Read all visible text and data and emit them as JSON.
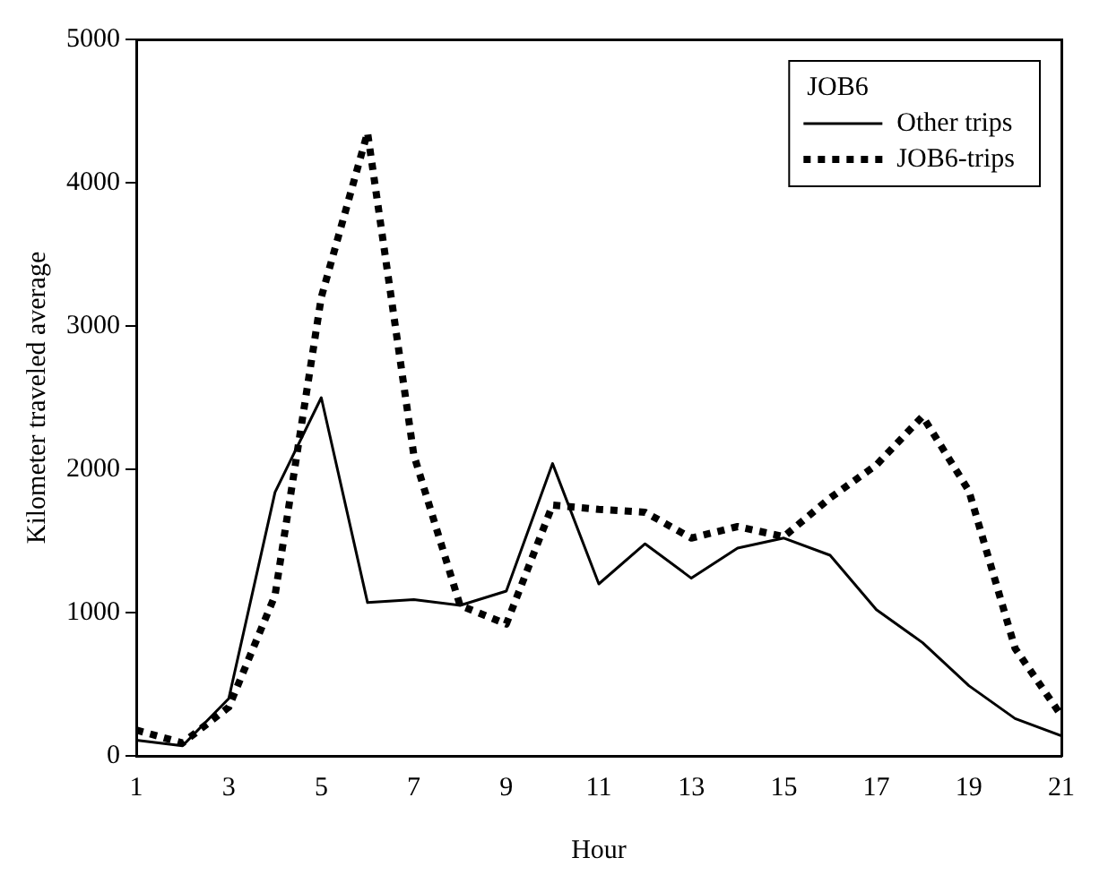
{
  "chart_data": {
    "type": "line",
    "xlabel": "Hour",
    "ylabel": "Kilometer traveled average",
    "legend_title": "JOB6",
    "legend": "top right",
    "grid": false,
    "marker": "none",
    "x": [
      1,
      2,
      3,
      4,
      5,
      6,
      7,
      8,
      9,
      10,
      11,
      12,
      13,
      14,
      15,
      16,
      17,
      18,
      19,
      20,
      21
    ],
    "xlim": [
      1,
      21
    ],
    "xticks": [
      1,
      3,
      5,
      7,
      9,
      11,
      13,
      15,
      17,
      19,
      21
    ],
    "ylim": [
      0,
      5000
    ],
    "yticks": [
      0,
      1000,
      2000,
      3000,
      4000,
      5000
    ],
    "series": [
      {
        "name": "Other trips",
        "color": "#000000",
        "line_style": "solid",
        "values": [
          110,
          70,
          400,
          1840,
          2500,
          1070,
          1090,
          1050,
          1150,
          2040,
          1200,
          1480,
          1240,
          1450,
          1520,
          1400,
          1020,
          790,
          490,
          260,
          140
        ]
      },
      {
        "name": "JOB6-trips",
        "color": "#000000",
        "line_style": "dotted",
        "values": [
          180,
          90,
          340,
          1120,
          3200,
          4350,
          2100,
          1050,
          920,
          1750,
          1720,
          1700,
          1520,
          1600,
          1530,
          1800,
          2030,
          2370,
          1850,
          750,
          280
        ]
      }
    ]
  }
}
